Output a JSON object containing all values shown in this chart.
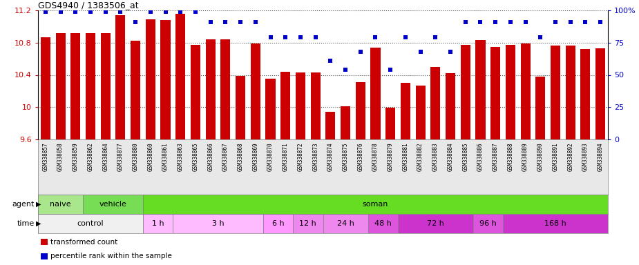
{
  "title": "GDS4940 / 1383506_at",
  "categories": [
    "GSM338857",
    "GSM338858",
    "GSM338859",
    "GSM338862",
    "GSM338864",
    "GSM338877",
    "GSM338880",
    "GSM338860",
    "GSM338861",
    "GSM338863",
    "GSM338865",
    "GSM338866",
    "GSM338867",
    "GSM338868",
    "GSM338869",
    "GSM338870",
    "GSM338871",
    "GSM338872",
    "GSM338873",
    "GSM338874",
    "GSM338875",
    "GSM338876",
    "GSM338878",
    "GSM338879",
    "GSM338881",
    "GSM338882",
    "GSM338883",
    "GSM338884",
    "GSM338885",
    "GSM338886",
    "GSM338887",
    "GSM338888",
    "GSM338889",
    "GSM338890",
    "GSM338891",
    "GSM338892",
    "GSM338893",
    "GSM338894"
  ],
  "bar_values": [
    10.87,
    10.92,
    10.92,
    10.92,
    10.92,
    11.14,
    10.82,
    11.09,
    11.08,
    11.16,
    10.77,
    10.84,
    10.84,
    10.39,
    10.79,
    10.35,
    10.44,
    10.43,
    10.43,
    9.94,
    10.01,
    10.31,
    10.74,
    9.99,
    10.3,
    10.27,
    10.5,
    10.42,
    10.77,
    10.83,
    10.75,
    10.77,
    10.79,
    10.38,
    10.76,
    10.76,
    10.72,
    10.73
  ],
  "percentile_values": [
    99,
    99,
    99,
    99,
    99,
    99,
    91,
    99,
    99,
    99,
    99,
    91,
    91,
    91,
    91,
    79,
    79,
    79,
    79,
    61,
    54,
    68,
    79,
    54,
    79,
    68,
    79,
    68,
    91,
    91,
    91,
    91,
    91,
    79,
    91,
    91,
    91,
    91
  ],
  "ylim_min": 9.6,
  "ylim_max": 11.2,
  "yticks": [
    9.6,
    10.0,
    10.4,
    10.8,
    11.2
  ],
  "ytick_labels": [
    "9.6",
    "10",
    "10.4",
    "10.8",
    "11.2"
  ],
  "right_yticks": [
    0,
    25,
    50,
    75,
    100
  ],
  "right_ytick_labels": [
    "0",
    "25",
    "50",
    "75",
    "100%"
  ],
  "bar_color": "#cc0000",
  "percentile_color": "#0000cc",
  "agent_groups": [
    {
      "label": "naive",
      "start": 0,
      "end": 3,
      "color": "#aae68c"
    },
    {
      "label": "vehicle",
      "start": 3,
      "end": 7,
      "color": "#77dd55"
    },
    {
      "label": "soman",
      "start": 7,
      "end": 38,
      "color": "#66dd22"
    }
  ],
  "time_groups": [
    {
      "label": "control",
      "start": 0,
      "end": 7,
      "color": "#f0f0f0"
    },
    {
      "label": "1 h",
      "start": 7,
      "end": 9,
      "color": "#ffbbff"
    },
    {
      "label": "3 h",
      "start": 9,
      "end": 15,
      "color": "#ffbbff"
    },
    {
      "label": "6 h",
      "start": 15,
      "end": 17,
      "color": "#ff99ff"
    },
    {
      "label": "12 h",
      "start": 17,
      "end": 19,
      "color": "#ee88ee"
    },
    {
      "label": "24 h",
      "start": 19,
      "end": 22,
      "color": "#ee88ee"
    },
    {
      "label": "48 h",
      "start": 22,
      "end": 24,
      "color": "#dd55dd"
    },
    {
      "label": "72 h",
      "start": 24,
      "end": 29,
      "color": "#cc33cc"
    },
    {
      "label": "96 h",
      "start": 29,
      "end": 31,
      "color": "#dd55dd"
    },
    {
      "label": "168 h",
      "start": 31,
      "end": 38,
      "color": "#cc33cc"
    }
  ],
  "legend_items": [
    {
      "label": "transformed count",
      "color": "#cc0000"
    },
    {
      "label": "percentile rank within the sample",
      "color": "#0000cc"
    }
  ]
}
